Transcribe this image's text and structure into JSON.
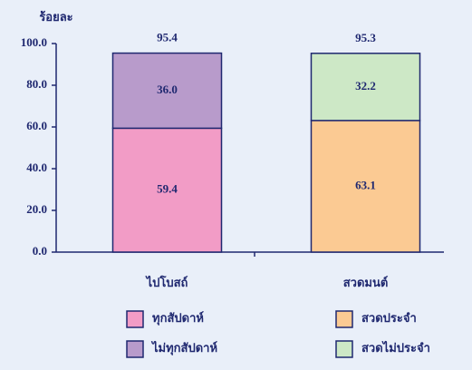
{
  "chart_data": {
    "type": "stacked_bar",
    "y_label": "ร้อยละ",
    "categories": [
      "ไปโบสถ์",
      "สวดมนต์"
    ],
    "series": [
      {
        "name": "ทุกสัปดาห์",
        "color": "#f29cc6",
        "values": [
          59.4,
          null
        ]
      },
      {
        "name": "ไม่ทุกสัปดาห์",
        "color": "#b89bcb",
        "values": [
          36,
          null
        ],
        "value_labels": [
          "36.0",
          null
        ]
      },
      {
        "name": "สวดประจำ",
        "color": "#fbca93",
        "values": [
          null,
          63.1
        ]
      },
      {
        "name": "สวดไม่ประจำ",
        "color": "#cde8c6",
        "values": [
          null,
          32.2
        ]
      }
    ],
    "totals": [
      95.4,
      95.3
    ],
    "ylim": [
      0,
      100
    ],
    "yticks": [
      {
        "value": 0,
        "label": "0.0"
      },
      {
        "value": 20,
        "label": "20.0"
      },
      {
        "value": 40,
        "label": "40.0"
      },
      {
        "value": 60,
        "label": "60.0"
      },
      {
        "value": 80,
        "label": "80.0"
      },
      {
        "value": 100,
        "label": "100.0"
      }
    ]
  }
}
